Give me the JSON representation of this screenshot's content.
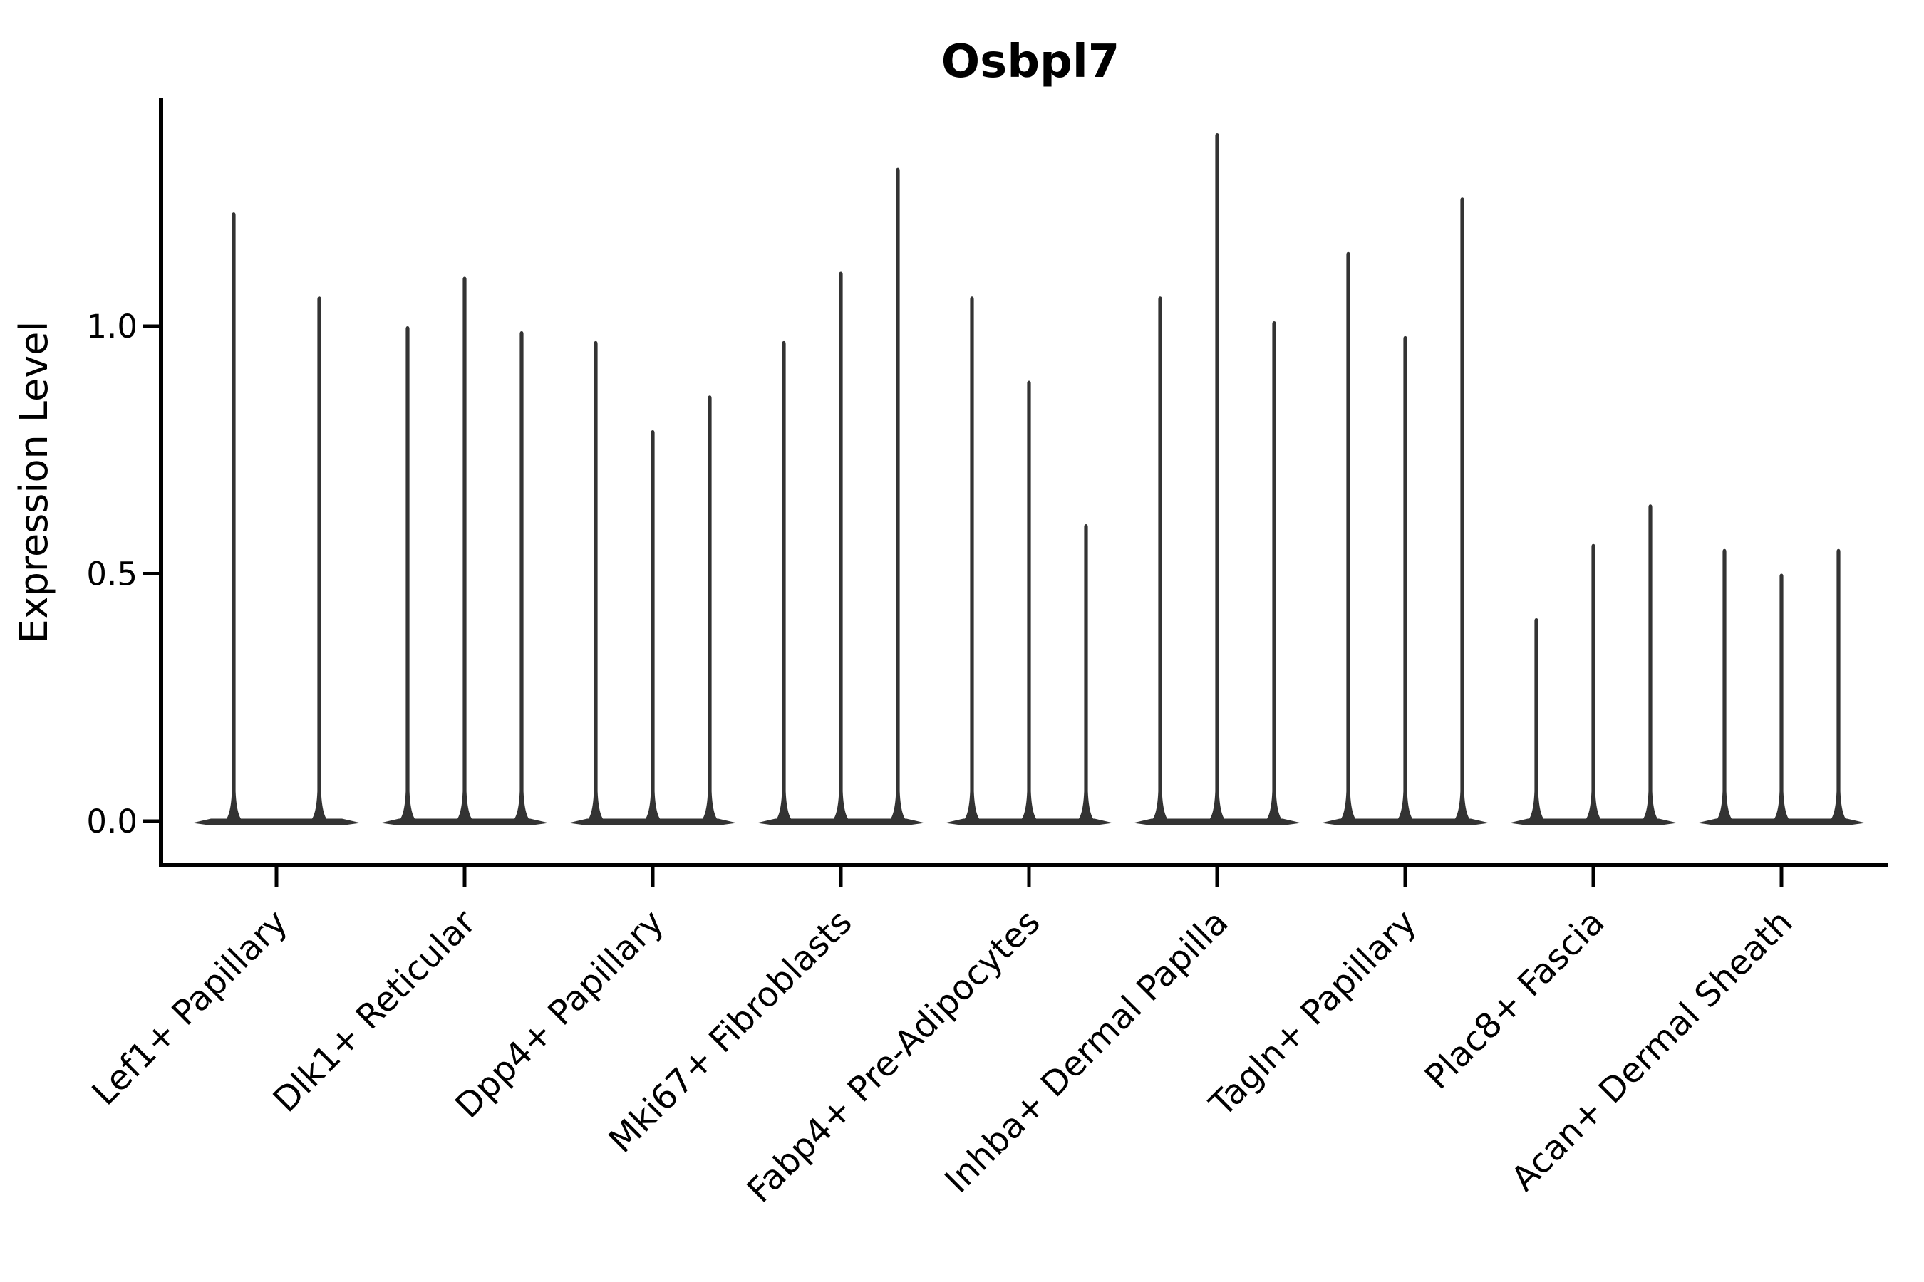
{
  "figure": {
    "title": "Osbpl7",
    "ylabel": "Expression Level"
  },
  "chart_data": {
    "type": "violin",
    "title": "Osbpl7",
    "xlabel": "",
    "ylabel": "Expression Level",
    "ylim": [
      -0.09,
      1.46
    ],
    "yticks": [
      0.0,
      0.5,
      1.0
    ],
    "ytick_labels": [
      "0.0",
      "0.5",
      "1.0"
    ],
    "grid": false,
    "legend_position": "none",
    "violin_style": "needle (wide base at 0, thin spike to max expression)",
    "violin_color": "#333333",
    "axis_color": "#000000",
    "background_color": "#ffffff",
    "categories": [
      "Lef1+ Papillary",
      "Dlk1+ Reticular",
      "Dpp4+ Papillary",
      "Mki67+ Fibroblasts",
      "Fabp4+ Pre-Adipocytes",
      "Inhba+ Dermal Papilla",
      "Tagln+ Papillary",
      "Plac8+ Fascia",
      "Acan+ Dermal Sheath"
    ],
    "series": [
      {
        "category": "Lef1+ Papillary",
        "violins": [
          {
            "offset": -60,
            "max": 1.23
          },
          {
            "offset": 60,
            "max": 1.06
          }
        ]
      },
      {
        "category": "Dlk1+ Reticular",
        "violins": [
          {
            "offset": -80,
            "max": 1.0
          },
          {
            "offset": 0,
            "max": 1.1
          },
          {
            "offset": 80,
            "max": 0.99
          }
        ]
      },
      {
        "category": "Dpp4+ Papillary",
        "violins": [
          {
            "offset": -80,
            "max": 0.97
          },
          {
            "offset": 0,
            "max": 0.79
          },
          {
            "offset": 80,
            "max": 0.86
          }
        ]
      },
      {
        "category": "Mki67+ Fibroblasts",
        "violins": [
          {
            "offset": -80,
            "max": 0.97
          },
          {
            "offset": 0,
            "max": 1.11
          },
          {
            "offset": 80,
            "max": 1.32
          }
        ]
      },
      {
        "category": "Fabp4+ Pre-Adipocytes",
        "violins": [
          {
            "offset": -80,
            "max": 1.06
          },
          {
            "offset": 0,
            "max": 0.89
          },
          {
            "offset": 80,
            "max": 0.6
          }
        ]
      },
      {
        "category": "Inhba+ Dermal Papilla",
        "violins": [
          {
            "offset": -80,
            "max": 1.06
          },
          {
            "offset": 0,
            "max": 1.39
          },
          {
            "offset": 80,
            "max": 1.01
          }
        ]
      },
      {
        "category": "Tagln+ Papillary",
        "violins": [
          {
            "offset": -80,
            "max": 1.15
          },
          {
            "offset": 0,
            "max": 0.98
          },
          {
            "offset": 80,
            "max": 1.26
          }
        ]
      },
      {
        "category": "Plac8+ Fascia",
        "violins": [
          {
            "offset": -80,
            "max": 0.41
          },
          {
            "offset": 0,
            "max": 0.56
          },
          {
            "offset": 80,
            "max": 0.64
          }
        ]
      },
      {
        "category": "Acan+ Dermal Sheath",
        "violins": [
          {
            "offset": -80,
            "max": 0.55
          },
          {
            "offset": 0,
            "max": 0.5
          },
          {
            "offset": 80,
            "max": 0.55
          }
        ]
      }
    ]
  }
}
